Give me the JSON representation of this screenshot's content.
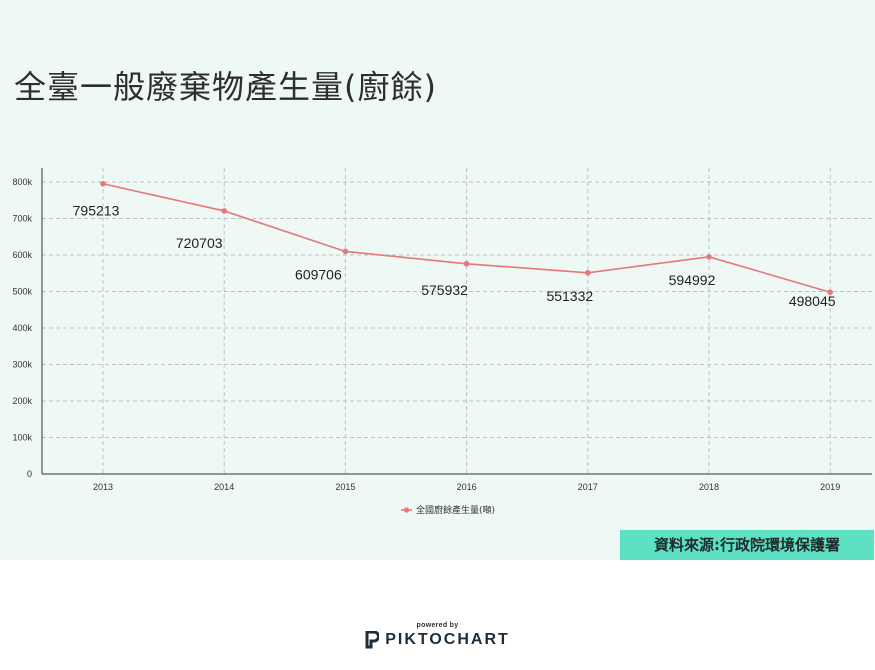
{
  "title": "全臺一般廢棄物產生量(廚餘)",
  "source": "資料來源:行政院環境保護署",
  "footer": {
    "powered_by": "powered by",
    "brand": "PIKTOCHART"
  },
  "colors": {
    "background": "#eef8f5",
    "series": "#e8777a",
    "source_box": "#5ee0c3",
    "brand": "#1d2e3a"
  },
  "chart_data": {
    "type": "line",
    "categories": [
      "2013",
      "2014",
      "2015",
      "2016",
      "2017",
      "2018",
      "2019"
    ],
    "series": [
      {
        "name": "全國廚餘產生量(噸)",
        "values": [
          795213,
          720703,
          609706,
          575932,
          551332,
          594992,
          498045
        ]
      }
    ],
    "data_labels": [
      "795213",
      "720703",
      "609706",
      "575932",
      "551332",
      "594992",
      "498045"
    ],
    "ylim": [
      0,
      800000
    ],
    "yticks": [
      0,
      100000,
      200000,
      300000,
      400000,
      500000,
      600000,
      700000,
      800000
    ],
    "ytick_labels": [
      "0",
      "100k",
      "200k",
      "300k",
      "400k",
      "500k",
      "600k",
      "700k",
      "800k"
    ],
    "grid": true,
    "legend": "bottom-center"
  }
}
